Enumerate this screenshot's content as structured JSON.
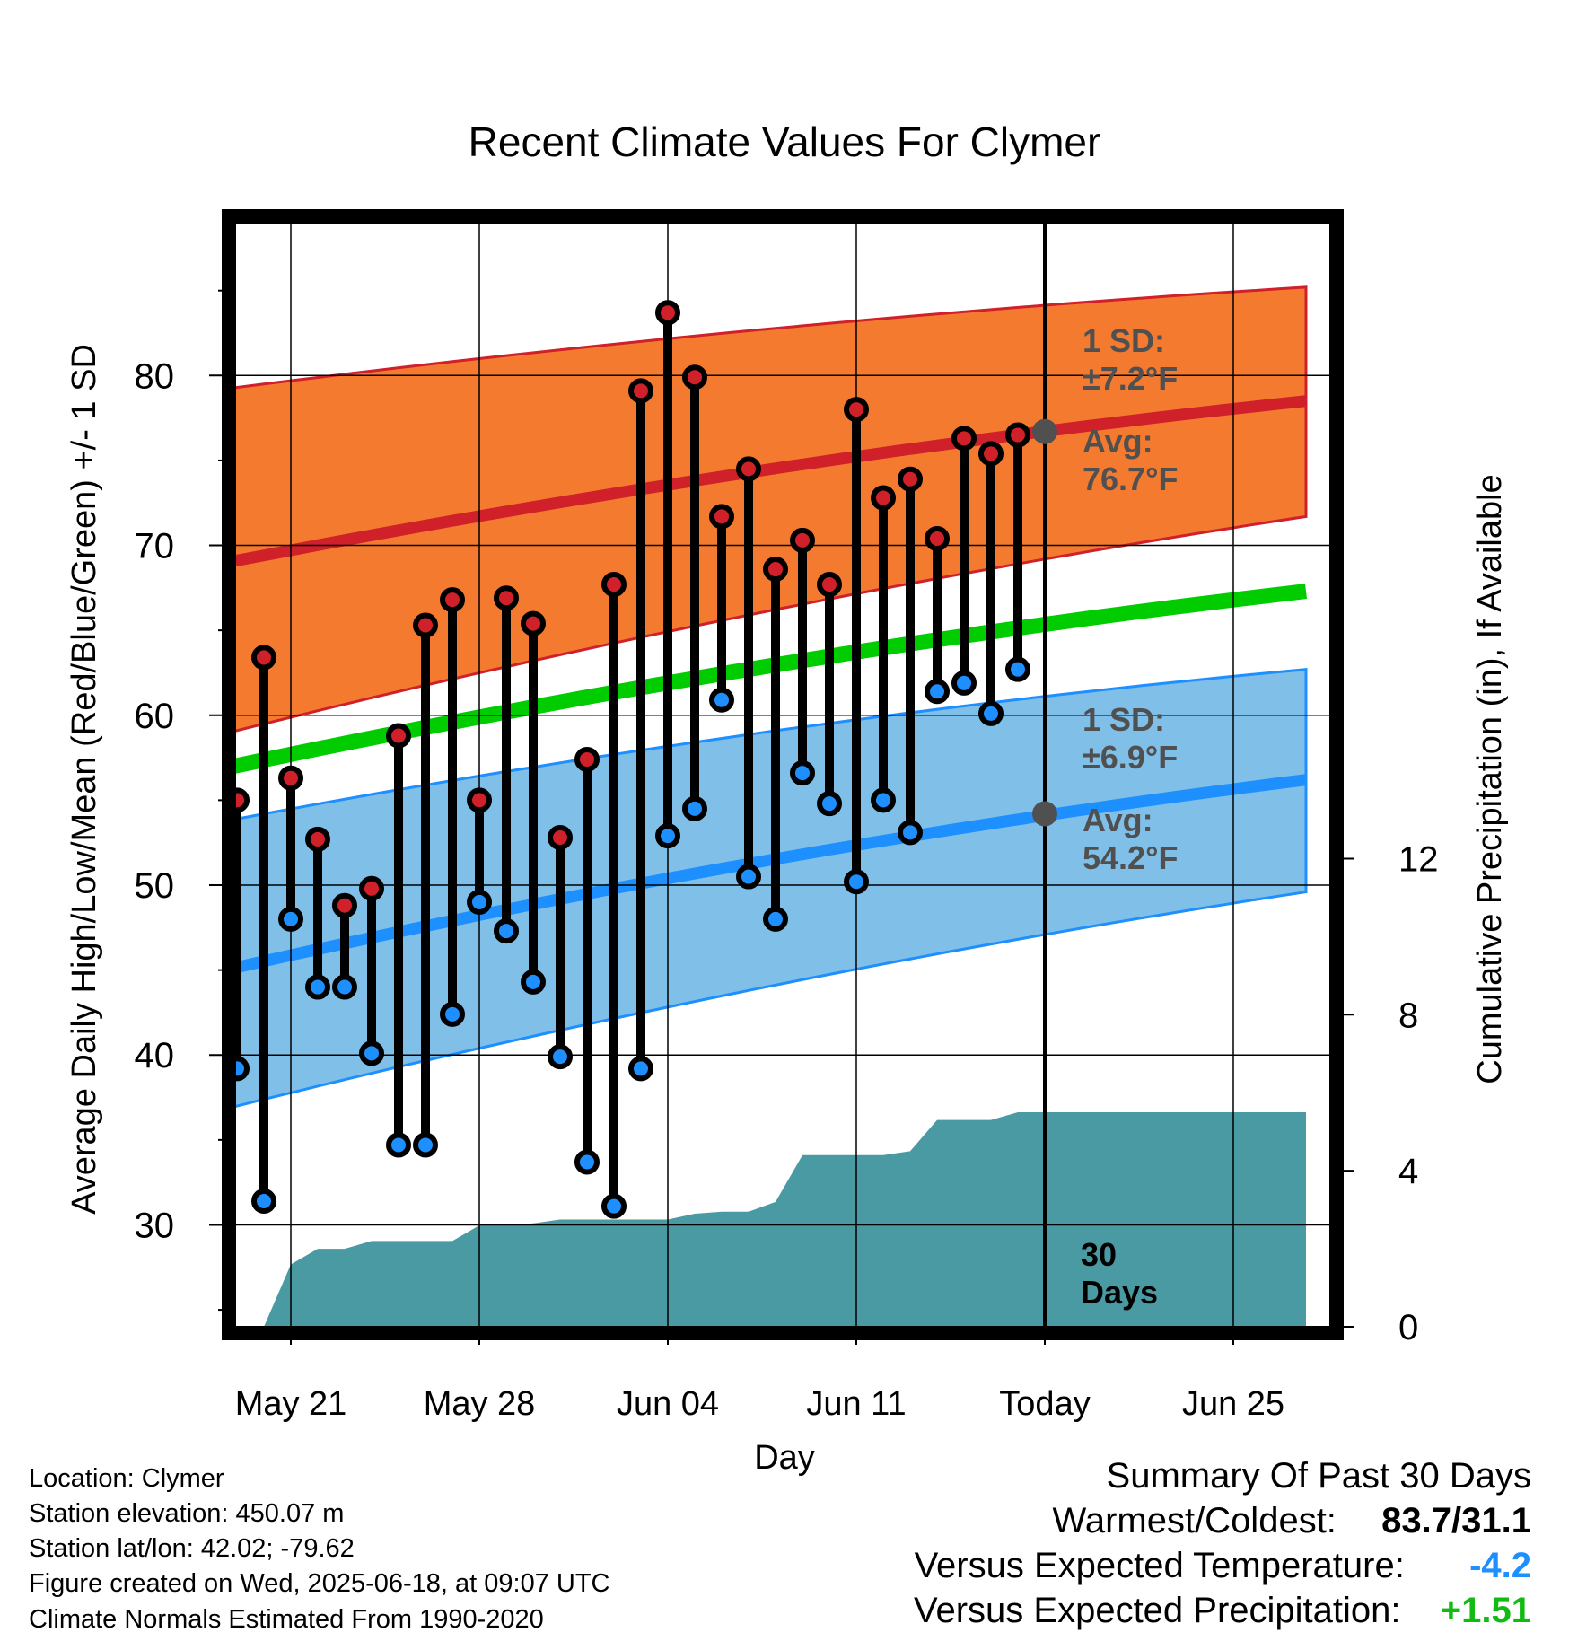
{
  "chart_data": {
    "type": "line",
    "title": "Recent Climate Values For Clymer",
    "xlabel": "Day",
    "ylabel": "Average Daily High/Low/Mean (Red/Blue/Green) +/- 1 SD",
    "ylabel_right": "Cumulative Precipitation (in), If Available",
    "ylim": [
      24,
      89
    ],
    "ylim_right": [
      0,
      28.3
    ],
    "x_tick_labels": [
      "May 21",
      "May 28",
      "Jun 04",
      "Jun 11",
      "Today",
      "Jun 25"
    ],
    "x_tick_days": [
      3,
      10,
      17,
      24,
      31,
      38
    ],
    "y_ticks": [
      30,
      40,
      50,
      60,
      70,
      80
    ],
    "y_ticks_right": [
      0,
      4,
      8,
      12
    ],
    "days": [
      1,
      2,
      3,
      4,
      5,
      6,
      7,
      8,
      9,
      10,
      11,
      12,
      13,
      14,
      15,
      16,
      17,
      18,
      19,
      20,
      21,
      22,
      23,
      24,
      25,
      26,
      27,
      28,
      29,
      30
    ],
    "series": [
      {
        "name": "High",
        "color": "#d0202a",
        "values": [
          55.0,
          63.4,
          56.3,
          52.7,
          48.8,
          49.8,
          58.8,
          65.3,
          66.8,
          55.0,
          66.9,
          65.4,
          52.8,
          57.4,
          67.7,
          79.1,
          83.7,
          79.9,
          71.7,
          74.5,
          68.6,
          70.3,
          67.7,
          78.0,
          72.8,
          73.9,
          70.4,
          76.3,
          75.4,
          76.5
        ]
      },
      {
        "name": "Low",
        "color": "#1e8fff",
        "values": [
          39.2,
          31.4,
          48.0,
          44.0,
          44.0,
          40.1,
          34.7,
          34.7,
          42.4,
          49.0,
          47.3,
          44.3,
          39.9,
          33.7,
          31.1,
          39.2,
          52.9,
          54.5,
          60.9,
          50.5,
          48.0,
          56.6,
          54.8,
          50.2,
          55.0,
          53.1,
          61.4,
          61.9,
          60.1,
          62.7
        ]
      },
      {
        "name": "Normal High",
        "color": "#d0202a",
        "days": [
          0,
          40.7
        ],
        "values": [
          68.8,
          78.5
        ]
      },
      {
        "name": "Normal Mean",
        "color": "#00cc00",
        "days": [
          0,
          40.7
        ],
        "values": [
          56.7,
          67.3
        ]
      },
      {
        "name": "Normal Low",
        "color": "#1e8fff",
        "days": [
          0,
          40.7
        ],
        "values": [
          44.8,
          56.2
        ]
      },
      {
        "name": "High +/- 1 SD band",
        "color": "#f47a30",
        "days": [
          0,
          40.7
        ],
        "upper": [
          79.1,
          85.2
        ],
        "lower": [
          58.7,
          71.7
        ]
      },
      {
        "name": "Low +/- 1 SD band",
        "color": "#80c0e8",
        "days": [
          0,
          40.7
        ],
        "upper": [
          53.6,
          62.7
        ],
        "lower": [
          36.6,
          49.6
        ]
      },
      {
        "name": "Cumulative Precipitation",
        "color": "#4a9aa4",
        "days": [
          2,
          3,
          4,
          5,
          6,
          7,
          8,
          9,
          10,
          11,
          12,
          13,
          14,
          15,
          16,
          17,
          18,
          19,
          20,
          21,
          22,
          23,
          24,
          25,
          26,
          27,
          28,
          29,
          30,
          31,
          40.7
        ],
        "values": [
          0.0,
          1.6,
          2.0,
          2.0,
          2.2,
          2.2,
          2.2,
          2.2,
          2.6,
          2.6,
          2.65,
          2.75,
          2.75,
          2.75,
          2.75,
          2.75,
          2.9,
          2.95,
          2.95,
          3.2,
          4.4,
          4.4,
          4.4,
          4.4,
          4.5,
          5.3,
          5.3,
          5.3,
          5.5,
          5.5,
          5.5
        ]
      }
    ],
    "annotations": {
      "high_sd_label": "1 SD:",
      "high_sd_value": "±7.2°F",
      "high_avg_label": "Avg:",
      "high_avg_value": "76.7°F",
      "high_avg": 76.7,
      "low_sd_label": "1 SD:",
      "low_sd_value": "±6.9°F",
      "low_avg_label": "Avg:",
      "low_avg_value": "54.2°F",
      "low_avg": 54.2,
      "today_day": 31,
      "days_label_1": "30",
      "days_label_2": "Days"
    },
    "grid": true
  },
  "info": {
    "location": "Location: Clymer",
    "elevation": "Station elevation: 450.07 m",
    "latlon": "Station lat/lon: 42.02; -79.62",
    "created": "Figure created on Wed, 2025-06-18, at 09:07 UTC",
    "normals": "Climate Normals Estimated From 1990-2020"
  },
  "summary": {
    "title": "Summary Of Past 30 Days",
    "warmest_label": "Warmest/Coldest:",
    "warmest_value": "83.7/31.1",
    "temp_label": "Versus Expected Temperature:",
    "temp_value": "-4.2",
    "temp_color": "#1e8fff",
    "precip_label": "Versus Expected Precipitation:",
    "precip_value": "+1.51",
    "precip_color": "#11bb11"
  }
}
